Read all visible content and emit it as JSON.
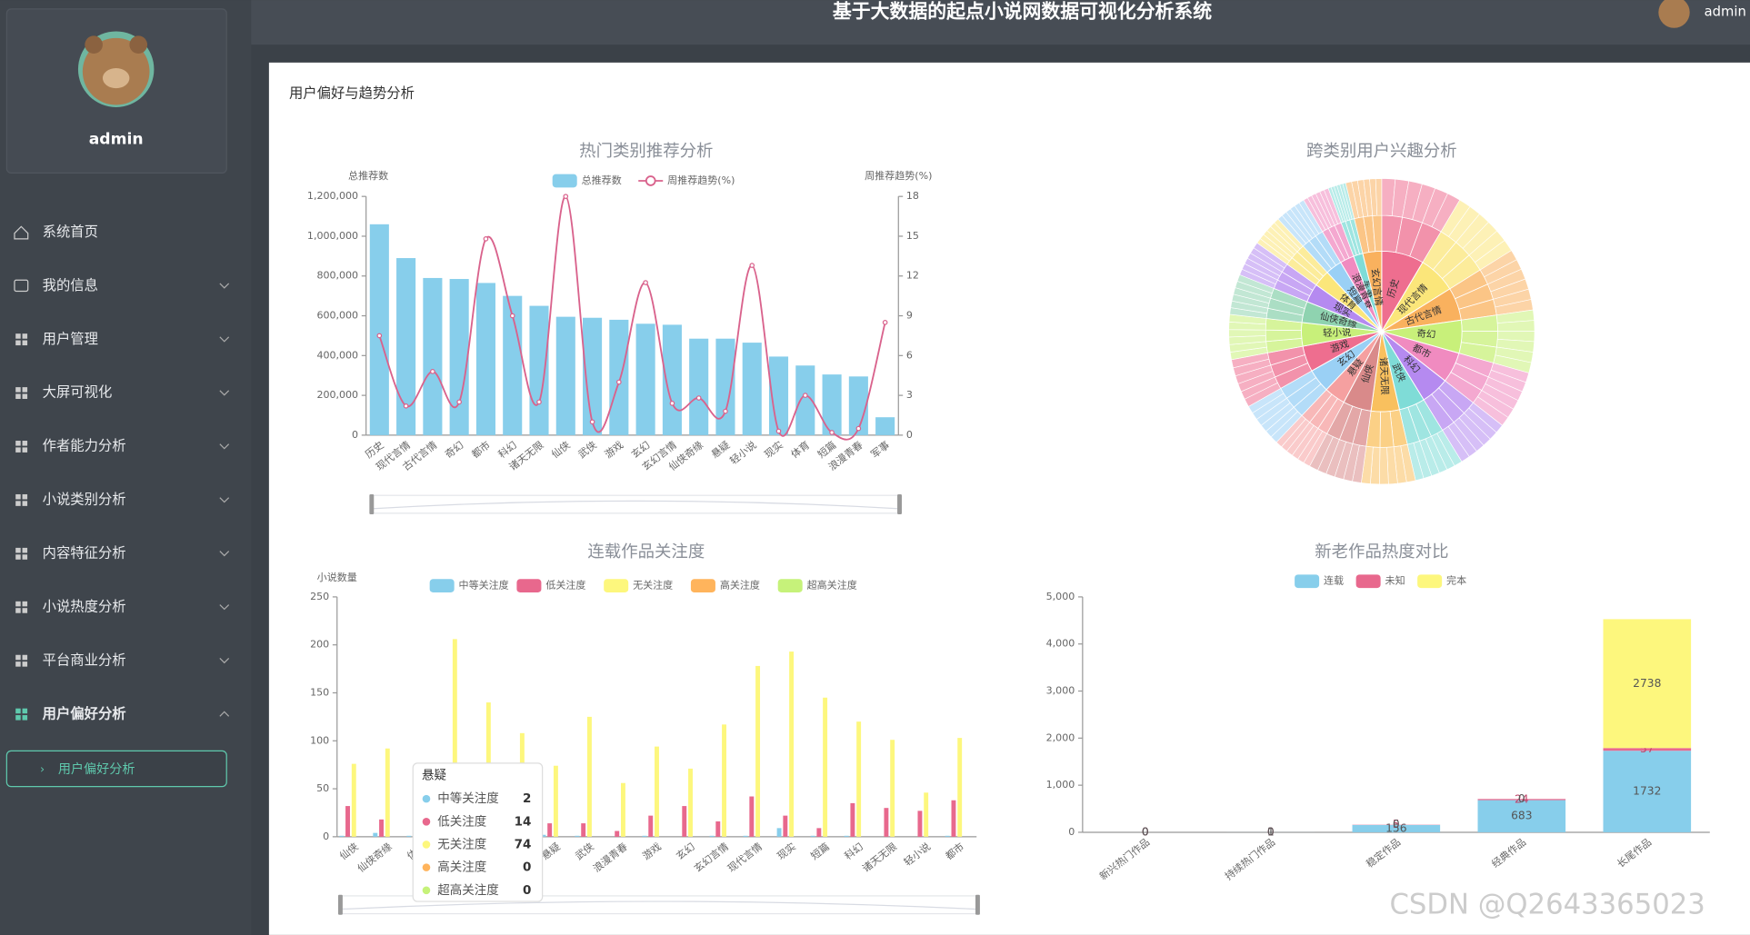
{
  "header": {
    "title": "基于大数据的起点小说网数据可视化分析系统",
    "user": "admin"
  },
  "sidebar": {
    "user": "admin",
    "menu": [
      "系统首页",
      "我的信息",
      "用户管理",
      "大屏可视化",
      "作者能力分析",
      "小说类别分析",
      "内容特征分析",
      "小说热度分析",
      "平台商业分析",
      "用户偏好分析"
    ],
    "submenu": [
      "用户偏好分析"
    ]
  },
  "panel": {
    "title": "用户偏好与趋势分析"
  },
  "watermark": "CSDN @Q2643365023",
  "chart_data": [
    {
      "type": "bar_line",
      "title": "热门类别推荐分析",
      "y_label": "总推荐数",
      "y2_label": "周推荐趋势(%)",
      "categories": [
        "历史",
        "现代言情",
        "古代言情",
        "奇幻",
        "都市",
        "科幻",
        "诸天无限",
        "仙侠",
        "武侠",
        "游戏",
        "玄幻",
        "玄幻言情",
        "仙侠奇缘",
        "悬疑",
        "轻小说",
        "现实",
        "体育",
        "短篇",
        "浪漫青春",
        "军事"
      ],
      "series": [
        {
          "name": "总推荐数",
          "color": "#87ceeb",
          "values": [
            1060000,
            890000,
            790000,
            785000,
            765000,
            700000,
            650000,
            595000,
            590000,
            580000,
            560000,
            555000,
            485000,
            485000,
            465000,
            395000,
            350000,
            305000,
            295000,
            90000
          ]
        },
        {
          "name": "周推荐趋势(%)",
          "color": "#d9628c",
          "axis": "y2",
          "values": [
            7.5,
            2.2,
            4.8,
            2.5,
            14.8,
            9,
            2.5,
            18,
            1,
            4,
            11.5,
            2.4,
            2.8,
            1.8,
            12.8,
            0.3,
            3,
            0.2,
            0.5,
            8.5
          ]
        }
      ],
      "ylim": [
        0,
        1200000
      ],
      "yticks": [
        0,
        {
          "value": 200000,
          "label": "200,000"
        },
        {
          "value": 400000,
          "label": "400,000"
        },
        {
          "value": 600000,
          "label": "600,000"
        },
        {
          "value": 800000,
          "label": "800,000"
        },
        {
          "value": 1000000,
          "label": "1,000,000"
        },
        {
          "value": 1200000,
          "label": "1,200,000"
        }
      ],
      "y2lim": [
        0,
        18
      ],
      "y2ticks": [
        0,
        3,
        6,
        9,
        12,
        15,
        18
      ]
    },
    {
      "type": "sunburst",
      "title": "跨类别用户兴趣分析",
      "categories": [
        "历史",
        "现代言情",
        "古代言情",
        "奇幻",
        "都市",
        "科幻",
        "武侠",
        "诸天无限",
        "仙侠",
        "悬疑",
        "玄幻",
        "游戏",
        "轻小说",
        "仙侠奇缘",
        "现实",
        "体育",
        "短篇",
        "浪漫青春",
        "军事",
        "玄幻言情"
      ],
      "values": [
        9,
        8,
        7,
        7,
        6.5,
        6,
        5.5,
        6,
        6,
        4.5,
        5,
        5.5,
        5,
        4.5,
        4,
        3.5,
        3.5,
        3,
        2,
        4
      ],
      "colors": [
        "#ee6e8f",
        "#fbe67a",
        "#f9b15e",
        "#c8f07a",
        "#f08bc0",
        "#b58af0",
        "#7fdcd7",
        "#f9c05e",
        "#d98a8a",
        "#f5a0a0",
        "#9ad0f5",
        "#ee6e8f",
        "#c8f07a",
        "#8fd3b0",
        "#b58af0",
        "#fbe67a",
        "#9ad0f5",
        "#f08bc0",
        "#7fdcd7",
        "#f9b15e"
      ]
    },
    {
      "type": "bar",
      "title": "连载作品关注度",
      "y_label": "小说数量",
      "categories": [
        "仙侠",
        "仙侠奇缘",
        "体育",
        null,
        null,
        null,
        "悬疑",
        "武侠",
        "浪漫青春",
        "游戏",
        "玄幻",
        "玄幻言情",
        "现代言情",
        "现实",
        "短篇",
        "科幻",
        "诸天无限",
        "轻小说",
        "都市"
      ],
      "series": [
        {
          "name": "中等关注度",
          "color": "#87ceeb",
          "values": [
            1,
            4,
            1,
            1,
            1,
            1,
            2,
            1,
            0,
            1,
            0,
            1,
            1,
            9,
            1,
            1,
            0,
            0,
            1
          ]
        },
        {
          "name": "低关注度",
          "color": "#e8688d",
          "values": [
            32,
            18,
            10,
            20,
            15,
            12,
            14,
            14,
            6,
            22,
            32,
            16,
            42,
            22,
            9,
            35,
            30,
            27,
            38
          ]
        },
        {
          "name": "无关注度",
          "color": "#fdf77d",
          "values": [
            76,
            92,
            60,
            206,
            140,
            108,
            74,
            125,
            56,
            94,
            71,
            117,
            178,
            193,
            145,
            120,
            101,
            46,
            103
          ]
        },
        {
          "name": "高关注度",
          "color": "#ffb45c",
          "values": [
            0,
            0,
            0,
            0,
            0,
            0,
            0,
            0,
            0,
            0,
            0,
            0,
            0,
            0,
            0,
            0,
            0,
            0,
            0
          ]
        },
        {
          "name": "超高关注度",
          "color": "#c6f27a",
          "values": [
            0,
            0,
            0,
            0,
            0,
            0,
            0,
            0,
            0,
            0,
            0,
            0,
            0,
            0,
            0,
            0,
            0,
            0,
            0
          ]
        }
      ],
      "ylim": [
        0,
        250
      ],
      "yticks": [
        0,
        50,
        100,
        150,
        200,
        250
      ]
    },
    {
      "type": "stacked_bar",
      "title": "新老作品热度对比",
      "categories": [
        "新兴热门作品",
        "持续热门作品",
        "稳定作品",
        "经典作品",
        "长尾作品"
      ],
      "series": [
        {
          "name": "连载",
          "color": "#87ceeb",
          "values": [
            0,
            1,
            156,
            683,
            1732
          ]
        },
        {
          "name": "未知",
          "color": "#e8688d",
          "values": [
            0,
            0,
            5,
            24,
            57
          ]
        },
        {
          "name": "完本",
          "color": "#fdf77d",
          "values": [
            0,
            0,
            0,
            0,
            2738
          ]
        }
      ],
      "ylim": [
        0,
        5000
      ],
      "yticks": [
        0,
        {
          "value": 1000,
          "label": "1,000"
        },
        {
          "value": 2000,
          "label": "2,000"
        },
        {
          "value": 3000,
          "label": "3,000"
        },
        {
          "value": 4000,
          "label": "4,000"
        },
        {
          "value": 5000,
          "label": "5,000"
        }
      ]
    }
  ]
}
